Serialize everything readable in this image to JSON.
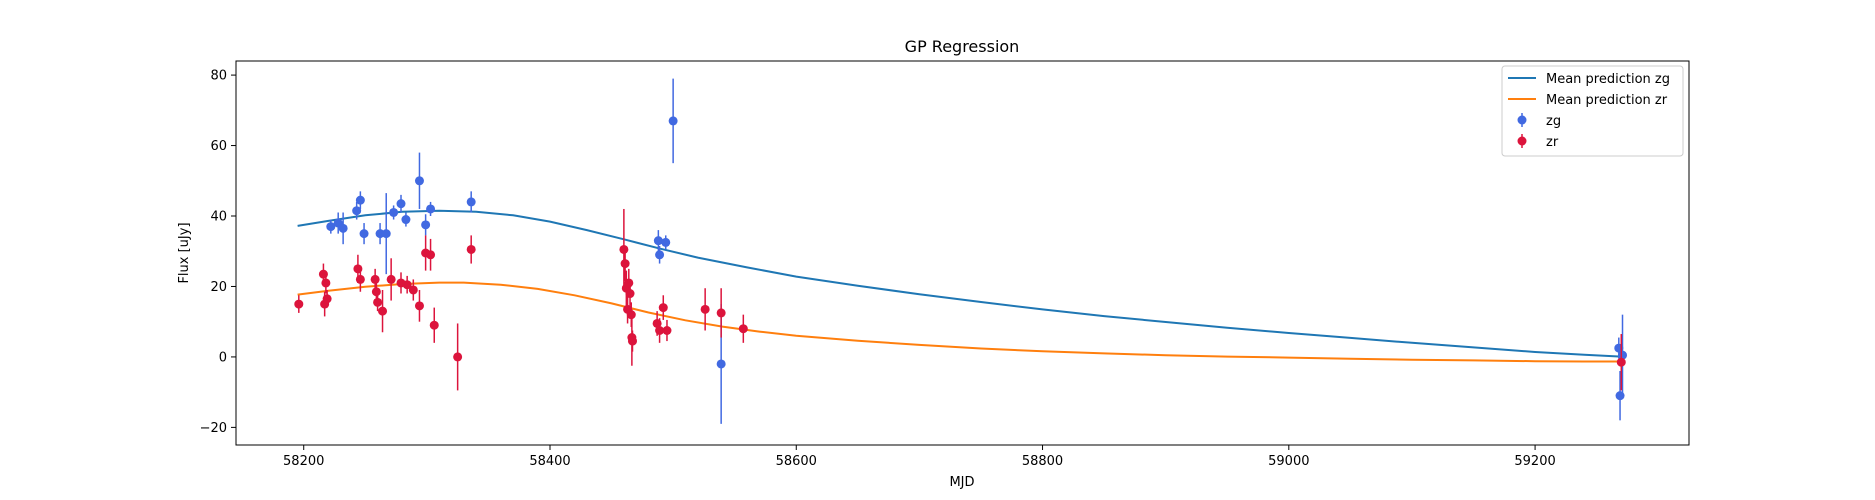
{
  "chart_data": {
    "type": "scatter",
    "title": "GP Regression",
    "xlabel": "MJD",
    "ylabel": "Flux [uJy]",
    "xlim": [
      58145,
      59325
    ],
    "ylim": [
      -25,
      84
    ],
    "xticks": [
      58200,
      58400,
      58600,
      58800,
      59000,
      59200
    ],
    "yticks": [
      -20,
      0,
      20,
      40,
      60,
      80
    ],
    "grid": false,
    "legend_position": "top-right",
    "legend": [
      "Mean prediction zg",
      "Mean prediction zr",
      "zg",
      "zr"
    ],
    "series": [
      {
        "name": "Mean prediction zg",
        "kind": "line",
        "color": "#1f77b4",
        "points": [
          [
            58195,
            37.2
          ],
          [
            58220,
            38.6
          ],
          [
            58250,
            40.2
          ],
          [
            58280,
            41.2
          ],
          [
            58310,
            41.5
          ],
          [
            58340,
            41.2
          ],
          [
            58370,
            40.2
          ],
          [
            58400,
            38.4
          ],
          [
            58430,
            36.0
          ],
          [
            58460,
            33.4
          ],
          [
            58490,
            30.7
          ],
          [
            58520,
            28.2
          ],
          [
            58560,
            25.4
          ],
          [
            58600,
            22.8
          ],
          [
            58650,
            20.2
          ],
          [
            58700,
            17.8
          ],
          [
            58750,
            15.6
          ],
          [
            58800,
            13.5
          ],
          [
            58850,
            11.6
          ],
          [
            58900,
            9.9
          ],
          [
            58950,
            8.3
          ],
          [
            59000,
            6.8
          ],
          [
            59050,
            5.4
          ],
          [
            59100,
            4.0
          ],
          [
            59150,
            2.7
          ],
          [
            59200,
            1.4
          ],
          [
            59240,
            0.6
          ],
          [
            59270,
            0.1
          ]
        ]
      },
      {
        "name": "Mean prediction zr",
        "kind": "line",
        "color": "#ff7f0e",
        "points": [
          [
            58195,
            17.7
          ],
          [
            58220,
            18.8
          ],
          [
            58250,
            19.9
          ],
          [
            58280,
            20.7
          ],
          [
            58310,
            21.1
          ],
          [
            58330,
            21.1
          ],
          [
            58360,
            20.5
          ],
          [
            58390,
            19.3
          ],
          [
            58420,
            17.5
          ],
          [
            58450,
            15.2
          ],
          [
            58480,
            12.6
          ],
          [
            58510,
            10.4
          ],
          [
            58540,
            8.6
          ],
          [
            58570,
            7.2
          ],
          [
            58600,
            6.0
          ],
          [
            58650,
            4.6
          ],
          [
            58700,
            3.4
          ],
          [
            58750,
            2.4
          ],
          [
            58800,
            1.6
          ],
          [
            58850,
            1.0
          ],
          [
            58900,
            0.5
          ],
          [
            58950,
            0.1
          ],
          [
            59000,
            -0.2
          ],
          [
            59050,
            -0.5
          ],
          [
            59100,
            -0.8
          ],
          [
            59150,
            -1.0
          ],
          [
            59200,
            -1.2
          ],
          [
            59240,
            -1.3
          ],
          [
            59270,
            -1.3
          ]
        ]
      },
      {
        "name": "zg",
        "kind": "errorbar",
        "color": "#4169e1",
        "points": [
          {
            "x": 58222,
            "y": 37.0,
            "err": 2.0
          },
          {
            "x": 58228,
            "y": 38.0,
            "err": 3.0
          },
          {
            "x": 58232,
            "y": 36.5,
            "err": 4.5
          },
          {
            "x": 58243,
            "y": 41.5,
            "err": 2.5
          },
          {
            "x": 58246,
            "y": 44.5,
            "err": 2.5
          },
          {
            "x": 58249,
            "y": 35.0,
            "err": 3.0
          },
          {
            "x": 58262,
            "y": 35.0,
            "err": 3.0
          },
          {
            "x": 58267,
            "y": 35.0,
            "err": 11.5
          },
          {
            "x": 58273,
            "y": 41.0,
            "err": 2.0
          },
          {
            "x": 58279,
            "y": 43.5,
            "err": 2.5
          },
          {
            "x": 58283,
            "y": 39.0,
            "err": 2.0
          },
          {
            "x": 58294,
            "y": 50.0,
            "err": 8.0
          },
          {
            "x": 58299,
            "y": 37.5,
            "err": 3.0
          },
          {
            "x": 58303,
            "y": 42.0,
            "err": 2.0
          },
          {
            "x": 58336,
            "y": 44.0,
            "err": 3.0
          },
          {
            "x": 58488,
            "y": 33.0,
            "err": 3.0
          },
          {
            "x": 58489,
            "y": 29.0,
            "err": 2.5
          },
          {
            "x": 58494,
            "y": 32.5,
            "err": 2.0
          },
          {
            "x": 58500,
            "y": 67.0,
            "err": 12.0
          },
          {
            "x": 58539,
            "y": -2.0,
            "err": 17.0
          },
          {
            "x": 59268,
            "y": 2.5,
            "err": 3.0
          },
          {
            "x": 59269,
            "y": -11.0,
            "err": 7.0
          },
          {
            "x": 59271,
            "y": 0.5,
            "err": 11.5
          }
        ]
      },
      {
        "name": "zr",
        "kind": "errorbar",
        "color": "#dc143c",
        "points": [
          {
            "x": 58196,
            "y": 15.0,
            "err": 2.5
          },
          {
            "x": 58216,
            "y": 23.5,
            "err": 3.0
          },
          {
            "x": 58217,
            "y": 15.0,
            "err": 3.5
          },
          {
            "x": 58218,
            "y": 21.0,
            "err": 3.0
          },
          {
            "x": 58219,
            "y": 16.5,
            "err": 2.5
          },
          {
            "x": 58244,
            "y": 25.0,
            "err": 4.0
          },
          {
            "x": 58246,
            "y": 22.0,
            "err": 3.5
          },
          {
            "x": 58258,
            "y": 22.0,
            "err": 3.0
          },
          {
            "x": 58259,
            "y": 18.5,
            "err": 3.5
          },
          {
            "x": 58260,
            "y": 15.5,
            "err": 2.5
          },
          {
            "x": 58264,
            "y": 13.0,
            "err": 6.0
          },
          {
            "x": 58271,
            "y": 22.0,
            "err": 6.0
          },
          {
            "x": 58279,
            "y": 21.0,
            "err": 3.0
          },
          {
            "x": 58284,
            "y": 20.5,
            "err": 2.5
          },
          {
            "x": 58289,
            "y": 19.0,
            "err": 3.0
          },
          {
            "x": 58294,
            "y": 14.5,
            "err": 4.5
          },
          {
            "x": 58299,
            "y": 29.5,
            "err": 5.0
          },
          {
            "x": 58303,
            "y": 29.0,
            "err": 4.5
          },
          {
            "x": 58306,
            "y": 9.0,
            "err": 5.0
          },
          {
            "x": 58325,
            "y": 0.0,
            "err": 9.5
          },
          {
            "x": 58336,
            "y": 30.5,
            "err": 4.0
          },
          {
            "x": 58460,
            "y": 30.5,
            "err": 11.5
          },
          {
            "x": 58461,
            "y": 26.5,
            "err": 5.0
          },
          {
            "x": 58462,
            "y": 19.5,
            "err": 5.0
          },
          {
            "x": 58463,
            "y": 13.5,
            "err": 4.0
          },
          {
            "x": 58464,
            "y": 21.0,
            "err": 4.0
          },
          {
            "x": 58465,
            "y": 18.0,
            "err": 3.5
          },
          {
            "x": 58466,
            "y": 12.0,
            "err": 3.5
          },
          {
            "x": 58466.5,
            "y": 5.5,
            "err": 8.0
          },
          {
            "x": 58467,
            "y": 4.5,
            "err": 3.0
          },
          {
            "x": 58487,
            "y": 9.5,
            "err": 3.5
          },
          {
            "x": 58489,
            "y": 7.5,
            "err": 3.5
          },
          {
            "x": 58492,
            "y": 14.0,
            "err": 3.5
          },
          {
            "x": 58495,
            "y": 7.5,
            "err": 3.0
          },
          {
            "x": 58526,
            "y": 13.5,
            "err": 6.0
          },
          {
            "x": 58539,
            "y": 12.5,
            "err": 7.0
          },
          {
            "x": 58557,
            "y": 8.0,
            "err": 4.0
          },
          {
            "x": 59270,
            "y": -1.5,
            "err": 8.0
          }
        ]
      }
    ]
  }
}
